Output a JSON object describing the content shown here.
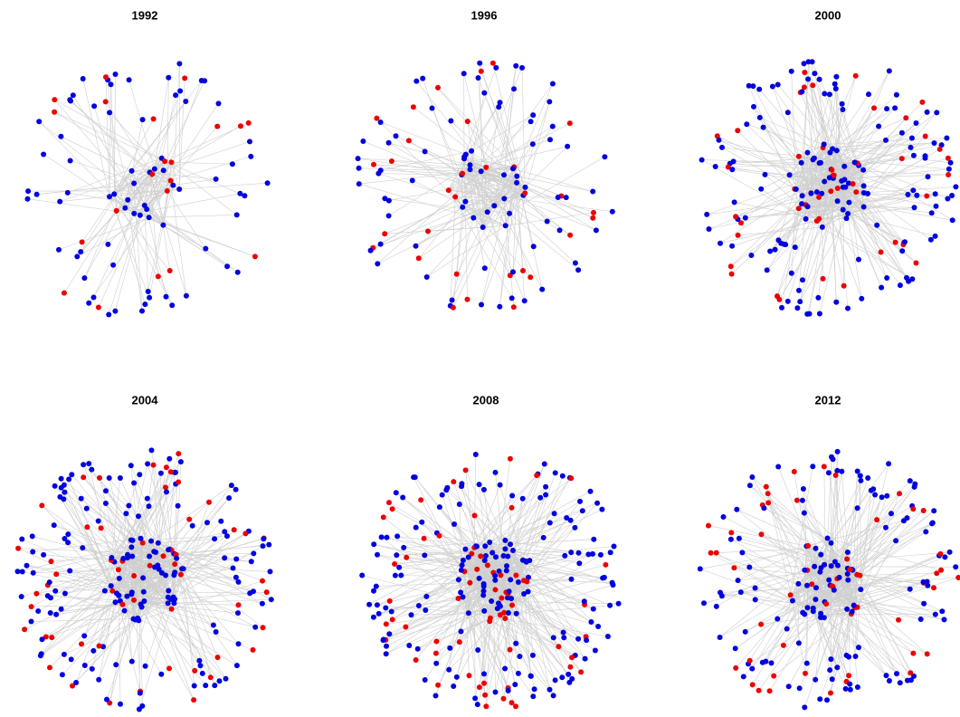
{
  "panels": [
    {
      "title": "1992"
    },
    {
      "title": "1996"
    },
    {
      "title": "2000"
    },
    {
      "title": "2004"
    },
    {
      "title": "2008"
    },
    {
      "title": "2012"
    }
  ]
}
